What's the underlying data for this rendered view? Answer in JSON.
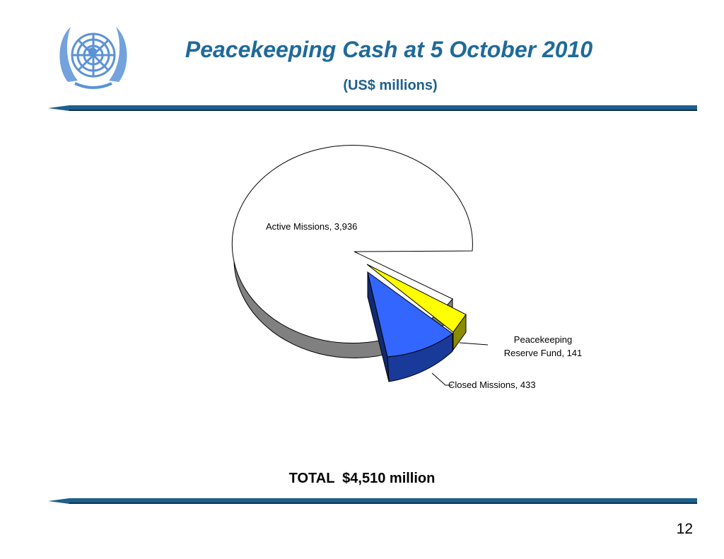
{
  "header": {
    "title": "Peacekeeping Cash at 5 October 2010",
    "subtitle": "(US$ millions)"
  },
  "chart_data": {
    "type": "pie",
    "slices": [
      {
        "label": "Active Missions",
        "value": 3936,
        "display": "3,936",
        "color": "#ffffff",
        "side_color": "#808080"
      },
      {
        "label": "Peacekeeping Reserve Fund",
        "value": 141,
        "display": "141",
        "color": "#ffff00",
        "side_color": "#8b8b00"
      },
      {
        "label": "Closed Missions",
        "value": 433,
        "display": "433",
        "color": "#3366ff",
        "side_color": "#1a3a99"
      }
    ],
    "data_labels": {
      "active": "Active Missions, 3,936",
      "reserve_line1": "Peacekeeping",
      "reserve_line2": "Reserve Fund, 141",
      "closed": "Closed Missions, 433"
    },
    "exploded_slices": [
      "Peacekeeping Reserve Fund",
      "Closed Missions"
    ],
    "style": "3d-exploded"
  },
  "footer": {
    "total": "TOTAL  $4,510 million",
    "page_number": "12"
  },
  "colors": {
    "title": "#1f6a99",
    "rule": "#1f5f8c",
    "logo": "#5b92d6"
  }
}
